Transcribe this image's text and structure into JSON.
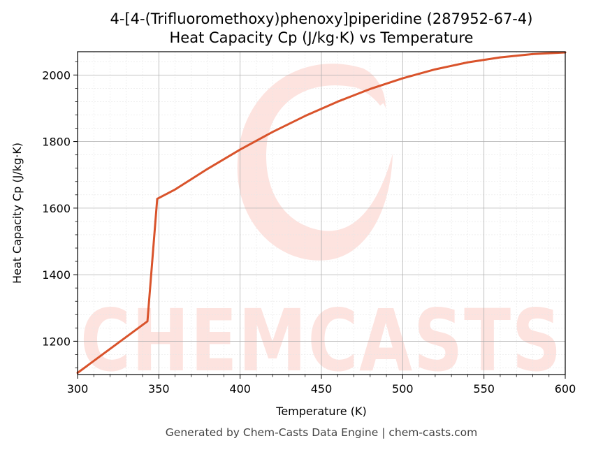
{
  "chart_data": {
    "type": "line",
    "title": "4-[4-(Trifluoromethoxy)phenoxy]piperidine (287952-67-4)",
    "subtitle": "Heat Capacity Cp (J/kg·K) vs Temperature",
    "xlabel": "Temperature (K)",
    "ylabel": "Heat Capacity Cp (J/kg·K)",
    "xlim": [
      300,
      600
    ],
    "ylim": [
      1100,
      2070
    ],
    "xticks": [
      300,
      350,
      400,
      450,
      500,
      550,
      600
    ],
    "yticks": [
      1200,
      1400,
      1600,
      1800,
      2000
    ],
    "grid": true,
    "line_color": "#d9532b",
    "watermark_color": "#fde3df",
    "series": [
      {
        "x": [
          300,
          343,
          349,
          360,
          380,
          400,
          420,
          440,
          460,
          480,
          500,
          520,
          540,
          560,
          580,
          600
        ],
        "y": [
          1105,
          1260,
          1628,
          1656,
          1718,
          1776,
          1829,
          1877,
          1920,
          1958,
          1990,
          2017,
          2038,
          2053,
          2063,
          2068
        ]
      }
    ]
  },
  "watermark": "CHEMCASTS",
  "footer": "Generated by Chem-Casts Data Engine | chem-casts.com"
}
